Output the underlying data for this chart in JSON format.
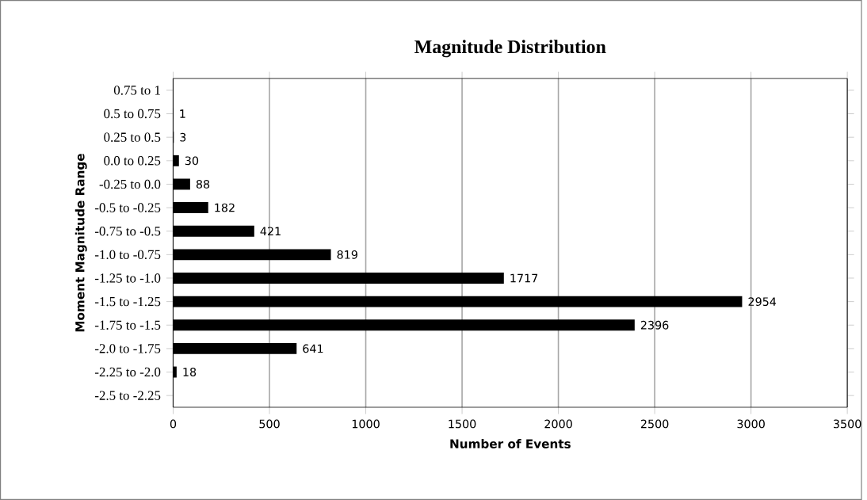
{
  "chart_data": {
    "type": "bar",
    "orientation": "horizontal",
    "title": "Magnitude Distribution",
    "xlabel": "Number of Events",
    "ylabel": "Moment Magnitude Range",
    "categories": [
      "0.75 to 1",
      "0.5 to 0.75",
      "0.25 to 0.5",
      "0.0 to 0.25",
      "-0.25 to 0.0",
      "-0.5 to -0.25",
      "-0.75 to -0.5",
      "-1.0 to -0.75",
      "-1.25 to -1.0",
      "-1.5 to -1.25",
      "-1.75 to -1.5",
      "-2.0 to -1.75",
      "-2.25 to -2.0",
      "-2.5 to -2.25"
    ],
    "values": [
      null,
      1,
      3,
      30,
      88,
      182,
      421,
      819,
      1717,
      2954,
      2396,
      641,
      18,
      null
    ],
    "color": "#000000",
    "data_labels": true,
    "grid": "x",
    "xlim": [
      0,
      3500
    ],
    "xticks": [
      0,
      500,
      1000,
      1500,
      2000,
      2500,
      3000,
      3500
    ]
  }
}
